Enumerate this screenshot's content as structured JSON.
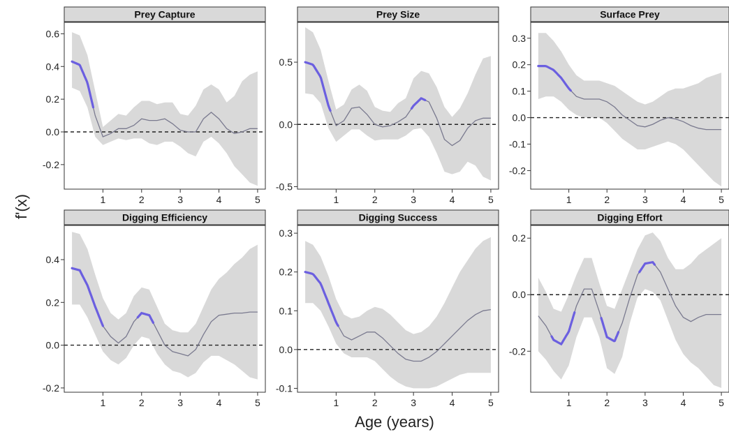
{
  "figure": {
    "ylabel": "f'(x)",
    "xlabel": "Age (years)",
    "colors": {
      "ribbon": "#d9d9d9",
      "line": "#7a7a8f",
      "highlight": "#6b5fe0",
      "strip": "#d9d9d9",
      "zero_line": "#222222"
    }
  },
  "chart_data": [
    {
      "type": "line",
      "title": "Prey Capture",
      "xlim": [
        0,
        5.2
      ],
      "ylim": [
        -0.35,
        0.67
      ],
      "xticks": [
        1,
        2,
        3,
        4,
        5
      ],
      "yticks": [
        -0.2,
        0.0,
        0.2,
        0.4,
        0.6
      ],
      "ytick_labels": [
        "-0.2",
        "0.0",
        "0.2",
        "0.4",
        "0.6"
      ],
      "reference_line": 0,
      "x": [
        0.2,
        0.4,
        0.6,
        0.8,
        1.0,
        1.2,
        1.4,
        1.6,
        1.8,
        2.0,
        2.2,
        2.4,
        2.6,
        2.8,
        3.0,
        3.2,
        3.4,
        3.6,
        3.8,
        4.0,
        4.2,
        4.4,
        4.6,
        4.8,
        5.0
      ],
      "y": [
        0.43,
        0.41,
        0.3,
        0.1,
        -0.03,
        -0.01,
        0.02,
        0.02,
        0.04,
        0.08,
        0.07,
        0.07,
        0.08,
        0.05,
        0.01,
        0.0,
        0.0,
        0.08,
        0.12,
        0.08,
        0.02,
        -0.01,
        0.0,
        0.02,
        0.02
      ],
      "lower": [
        0.27,
        0.25,
        0.15,
        -0.03,
        -0.08,
        -0.06,
        -0.04,
        -0.05,
        -0.04,
        -0.04,
        -0.07,
        -0.08,
        -0.06,
        -0.06,
        -0.09,
        -0.13,
        -0.15,
        -0.06,
        -0.03,
        -0.07,
        -0.13,
        -0.21,
        -0.26,
        -0.31,
        -0.33
      ],
      "upper": [
        0.61,
        0.59,
        0.47,
        0.25,
        0.03,
        0.07,
        0.11,
        0.1,
        0.15,
        0.19,
        0.19,
        0.17,
        0.18,
        0.18,
        0.11,
        0.1,
        0.16,
        0.26,
        0.29,
        0.26,
        0.18,
        0.22,
        0.31,
        0.35,
        0.37
      ],
      "highlight_ranges": [
        [
          0.2,
          0.75
        ]
      ]
    },
    {
      "type": "line",
      "title": "Prey Size",
      "xlim": [
        0,
        5.2
      ],
      "ylim": [
        -0.52,
        0.82
      ],
      "xticks": [
        1,
        2,
        3,
        4,
        5
      ],
      "yticks": [
        -0.5,
        0.0,
        0.5
      ],
      "ytick_labels": [
        "-0.5",
        "0.0",
        "0.5"
      ],
      "reference_line": 0,
      "x": [
        0.2,
        0.4,
        0.6,
        0.8,
        1.0,
        1.2,
        1.4,
        1.6,
        1.8,
        2.0,
        2.2,
        2.4,
        2.6,
        2.8,
        3.0,
        3.2,
        3.4,
        3.6,
        3.8,
        4.0,
        4.2,
        4.4,
        4.6,
        4.8,
        5.0
      ],
      "y": [
        0.5,
        0.48,
        0.38,
        0.15,
        -0.01,
        0.03,
        0.13,
        0.14,
        0.08,
        0.0,
        -0.02,
        -0.01,
        0.02,
        0.06,
        0.15,
        0.21,
        0.18,
        0.05,
        -0.12,
        -0.17,
        -0.13,
        -0.03,
        0.03,
        0.05,
        0.05
      ],
      "lower": [
        0.25,
        0.24,
        0.17,
        -0.03,
        -0.14,
        -0.09,
        -0.04,
        -0.04,
        -0.09,
        -0.13,
        -0.12,
        -0.12,
        -0.12,
        -0.09,
        -0.04,
        -0.03,
        -0.1,
        -0.23,
        -0.38,
        -0.4,
        -0.38,
        -0.3,
        -0.33,
        -0.42,
        -0.45
      ],
      "upper": [
        0.78,
        0.74,
        0.6,
        0.35,
        0.12,
        0.16,
        0.28,
        0.32,
        0.27,
        0.14,
        0.11,
        0.1,
        0.17,
        0.21,
        0.37,
        0.43,
        0.41,
        0.3,
        0.14,
        0.06,
        0.13,
        0.25,
        0.4,
        0.53,
        0.55
      ],
      "highlight_ranges": [
        [
          0.2,
          0.85
        ],
        [
          2.95,
          3.3
        ]
      ]
    },
    {
      "type": "line",
      "title": "Surface Prey",
      "xlim": [
        0,
        5.2
      ],
      "ylim": [
        -0.27,
        0.36
      ],
      "xticks": [
        1,
        2,
        3,
        4,
        5
      ],
      "yticks": [
        -0.2,
        -0.1,
        0.0,
        0.1,
        0.2,
        0.3
      ],
      "ytick_labels": [
        "-0.2",
        "-0.1",
        "0.0",
        "0.1",
        "0.2",
        "0.3"
      ],
      "reference_line": 0,
      "x": [
        0.2,
        0.4,
        0.6,
        0.8,
        1.0,
        1.2,
        1.4,
        1.6,
        1.8,
        2.0,
        2.2,
        2.4,
        2.6,
        2.8,
        3.0,
        3.2,
        3.4,
        3.6,
        3.8,
        4.0,
        4.2,
        4.4,
        4.6,
        4.8,
        5.0
      ],
      "y": [
        0.195,
        0.195,
        0.18,
        0.15,
        0.11,
        0.08,
        0.07,
        0.07,
        0.07,
        0.06,
        0.04,
        0.01,
        -0.01,
        -0.03,
        -0.035,
        -0.025,
        -0.01,
        0.0,
        -0.005,
        -0.015,
        -0.03,
        -0.04,
        -0.045,
        -0.045,
        -0.045
      ],
      "lower": [
        0.07,
        0.08,
        0.08,
        0.06,
        0.03,
        0.01,
        0.0,
        0.0,
        0.0,
        -0.02,
        -0.05,
        -0.08,
        -0.1,
        -0.12,
        -0.12,
        -0.11,
        -0.1,
        -0.09,
        -0.1,
        -0.12,
        -0.15,
        -0.18,
        -0.21,
        -0.24,
        -0.26
      ],
      "upper": [
        0.32,
        0.32,
        0.29,
        0.25,
        0.2,
        0.16,
        0.14,
        0.14,
        0.14,
        0.13,
        0.12,
        0.1,
        0.08,
        0.06,
        0.05,
        0.06,
        0.08,
        0.1,
        0.11,
        0.11,
        0.12,
        0.13,
        0.15,
        0.16,
        0.17
      ],
      "highlight_ranges": [
        [
          0.2,
          1.05
        ]
      ]
    },
    {
      "type": "line",
      "title": "Digging Efficiency",
      "xlim": [
        0,
        5.2
      ],
      "ylim": [
        -0.22,
        0.56
      ],
      "xticks": [
        1,
        2,
        3,
        4,
        5
      ],
      "yticks": [
        -0.2,
        0.0,
        0.2,
        0.4
      ],
      "ytick_labels": [
        "-0.2",
        "0.0",
        "0.2",
        "0.4"
      ],
      "reference_line": 0,
      "x": [
        0.2,
        0.4,
        0.6,
        0.8,
        1.0,
        1.2,
        1.4,
        1.6,
        1.8,
        2.0,
        2.2,
        2.4,
        2.6,
        2.8,
        3.0,
        3.2,
        3.4,
        3.6,
        3.8,
        4.0,
        4.2,
        4.4,
        4.6,
        4.8,
        5.0
      ],
      "y": [
        0.36,
        0.35,
        0.28,
        0.18,
        0.09,
        0.04,
        0.01,
        0.04,
        0.11,
        0.15,
        0.14,
        0.07,
        0.0,
        -0.03,
        -0.04,
        -0.05,
        -0.02,
        0.05,
        0.11,
        0.14,
        0.145,
        0.15,
        0.15,
        0.155,
        0.155
      ],
      "lower": [
        0.19,
        0.19,
        0.13,
        0.05,
        -0.03,
        -0.07,
        -0.09,
        -0.06,
        0.0,
        0.04,
        0.03,
        -0.04,
        -0.09,
        -0.12,
        -0.13,
        -0.15,
        -0.13,
        -0.08,
        -0.05,
        -0.05,
        -0.07,
        -0.09,
        -0.12,
        -0.15,
        -0.16
      ],
      "upper": [
        0.53,
        0.52,
        0.45,
        0.33,
        0.22,
        0.15,
        0.12,
        0.15,
        0.23,
        0.27,
        0.26,
        0.18,
        0.1,
        0.07,
        0.06,
        0.06,
        0.1,
        0.18,
        0.26,
        0.31,
        0.34,
        0.38,
        0.41,
        0.45,
        0.47
      ],
      "highlight_ranges": [
        [
          0.2,
          1.0
        ],
        [
          1.9,
          2.3
        ]
      ]
    },
    {
      "type": "line",
      "title": "Digging Success",
      "xlim": [
        0,
        5.2
      ],
      "ylim": [
        -0.11,
        0.32
      ],
      "xticks": [
        1,
        2,
        3,
        4,
        5
      ],
      "yticks": [
        -0.1,
        0.0,
        0.1,
        0.2,
        0.3
      ],
      "ytick_labels": [
        "-0.1",
        "0.0",
        "0.1",
        "0.2",
        "0.3"
      ],
      "reference_line": 0,
      "x": [
        0.2,
        0.4,
        0.6,
        0.8,
        1.0,
        1.2,
        1.4,
        1.6,
        1.8,
        2.0,
        2.2,
        2.4,
        2.6,
        2.8,
        3.0,
        3.2,
        3.4,
        3.6,
        3.8,
        4.0,
        4.2,
        4.4,
        4.6,
        4.8,
        5.0
      ],
      "y": [
        0.2,
        0.195,
        0.17,
        0.12,
        0.07,
        0.035,
        0.025,
        0.035,
        0.045,
        0.045,
        0.03,
        0.01,
        -0.01,
        -0.025,
        -0.03,
        -0.03,
        -0.02,
        -0.005,
        0.015,
        0.035,
        0.055,
        0.075,
        0.09,
        0.1,
        0.103
      ],
      "lower": [
        0.12,
        0.12,
        0.1,
        0.06,
        0.015,
        -0.01,
        -0.02,
        -0.02,
        -0.02,
        -0.03,
        -0.05,
        -0.07,
        -0.085,
        -0.095,
        -0.1,
        -0.1,
        -0.1,
        -0.095,
        -0.085,
        -0.075,
        -0.065,
        -0.06,
        -0.06,
        -0.06,
        -0.06
      ],
      "upper": [
        0.28,
        0.27,
        0.24,
        0.19,
        0.13,
        0.09,
        0.08,
        0.085,
        0.1,
        0.11,
        0.105,
        0.09,
        0.07,
        0.05,
        0.04,
        0.045,
        0.06,
        0.085,
        0.12,
        0.16,
        0.2,
        0.23,
        0.26,
        0.28,
        0.29
      ],
      "highlight_ranges": [
        [
          0.2,
          1.05
        ]
      ]
    },
    {
      "type": "line",
      "title": "Digging Effort",
      "xlim": [
        0,
        5.2
      ],
      "ylim": [
        -0.345,
        0.245
      ],
      "xticks": [
        1,
        2,
        3,
        4,
        5
      ],
      "yticks": [
        -0.2,
        0.0,
        0.2
      ],
      "ytick_labels": [
        "-0.2",
        "0.0",
        "0.2"
      ],
      "reference_line": 0,
      "x": [
        0.2,
        0.4,
        0.6,
        0.8,
        1.0,
        1.2,
        1.4,
        1.6,
        1.8,
        2.0,
        2.2,
        2.4,
        2.6,
        2.8,
        3.0,
        3.2,
        3.4,
        3.6,
        3.8,
        4.0,
        4.2,
        4.4,
        4.6,
        4.8,
        5.0
      ],
      "y": [
        -0.075,
        -0.11,
        -0.16,
        -0.175,
        -0.13,
        -0.04,
        0.02,
        0.02,
        -0.06,
        -0.15,
        -0.165,
        -0.1,
        -0.01,
        0.07,
        0.11,
        0.115,
        0.08,
        0.02,
        -0.04,
        -0.08,
        -0.095,
        -0.08,
        -0.07,
        -0.07,
        -0.07
      ],
      "lower": [
        -0.2,
        -0.23,
        -0.27,
        -0.3,
        -0.25,
        -0.15,
        -0.08,
        -0.08,
        -0.15,
        -0.26,
        -0.28,
        -0.22,
        -0.1,
        -0.01,
        0.02,
        0.01,
        -0.02,
        -0.09,
        -0.16,
        -0.21,
        -0.24,
        -0.26,
        -0.29,
        -0.32,
        -0.33
      ],
      "upper": [
        0.06,
        0.01,
        -0.05,
        -0.06,
        0.0,
        0.07,
        0.13,
        0.13,
        0.04,
        -0.04,
        -0.05,
        0.02,
        0.09,
        0.16,
        0.21,
        0.22,
        0.19,
        0.13,
        0.09,
        0.09,
        0.11,
        0.14,
        0.16,
        0.18,
        0.2
      ],
      "highlight_ranges": [
        [
          0.55,
          1.15
        ],
        [
          1.85,
          2.3
        ],
        [
          2.85,
          3.25
        ]
      ]
    }
  ]
}
